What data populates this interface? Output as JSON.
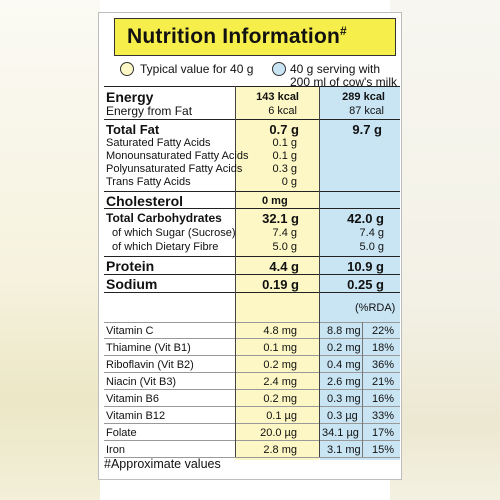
{
  "title": "Nutrition Information",
  "title_mark": "#",
  "legend": {
    "typical": "Typical value for 40 g",
    "serving_line1": "40 g serving with",
    "serving_line2": "200 ml of cow's milk"
  },
  "colors": {
    "banner": "#f6ee4a",
    "typical_column": "#fcf7c4",
    "serving_column": "#c9e5f4"
  },
  "energy": {
    "label": "Energy",
    "typical": "143 kcal",
    "serving": "289 kcal",
    "fat_label": "Energy from Fat",
    "fat_typical": "6 kcal",
    "fat_serving": "87 kcal"
  },
  "total_fat": {
    "label": "Total Fat",
    "typical": "0.7 g",
    "serving": "9.7 g",
    "sub": [
      {
        "label": "Saturated Fatty Acids",
        "typical": "0.1 g"
      },
      {
        "label": "Monounsaturated Fatty Acids",
        "typical": "0.1 g"
      },
      {
        "label": "Polyunsaturated Fatty Acids",
        "typical": "0.3 g"
      },
      {
        "label": "Trans Fatty Acids",
        "typical": "0 g"
      }
    ]
  },
  "cholesterol": {
    "label": "Cholesterol",
    "typical": "0 mg"
  },
  "carbohydrates": {
    "label": "Total Carbohydrates",
    "typical": "32.1 g",
    "serving": "42.0 g",
    "sub": [
      {
        "label": "of which Sugar (Sucrose)",
        "typical": "7.4 g",
        "serving": "7.4 g"
      },
      {
        "label": "of which Dietary Fibre",
        "typical": "5.0 g",
        "serving": "5.0 g"
      }
    ]
  },
  "protein": {
    "label": "Protein",
    "typical": "4.4 g",
    "serving": "10.9 g"
  },
  "sodium": {
    "label": "Sodium",
    "typical": "0.19 g",
    "serving": "0.25 g"
  },
  "rda_header": "(%RDA)",
  "vitamins": [
    {
      "label": "Vitamin C",
      "typical": "4.8 mg",
      "serving": "8.8 mg",
      "rda": "22%"
    },
    {
      "label": "Thiamine (Vit B1)",
      "typical": "0.1 mg",
      "serving": "0.2 mg",
      "rda": "18%"
    },
    {
      "label": "Riboflavin (Vit B2)",
      "typical": "0.2 mg",
      "serving": "0.4 mg",
      "rda": "36%"
    },
    {
      "label": "Niacin (Vit B3)",
      "typical": "2.4 mg",
      "serving": "2.6 mg",
      "rda": "21%"
    },
    {
      "label": "Vitamin B6",
      "typical": "0.2 mg",
      "serving": "0.3 mg",
      "rda": "16%"
    },
    {
      "label": "Vitamin B12",
      "typical": "0.1 µg",
      "serving": "0.3 µg",
      "rda": "33%"
    },
    {
      "label": "Folate",
      "typical": "20.0 µg",
      "serving": "34.1 µg",
      "rda": "17%"
    },
    {
      "label": "Iron",
      "typical": "2.8 mg",
      "serving": "3.1 mg",
      "rda": "15%"
    }
  ],
  "footnote": "#Approximate values"
}
